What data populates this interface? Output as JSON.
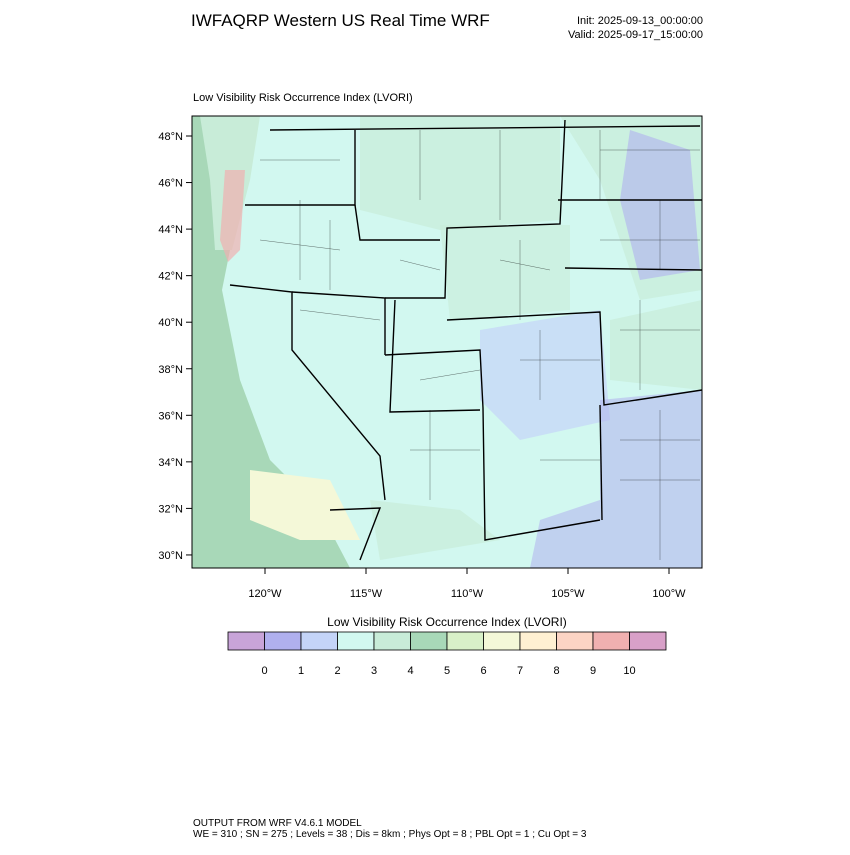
{
  "header": {
    "title": "IWFAQRP Western US Real Time WRF",
    "init": "Init: 2025-09-13_00:00:00",
    "valid": "Valid: 2025-09-17_15:00:00"
  },
  "map": {
    "subtitle": "Low Visibility Risk Occurrence Index   (LVORI)",
    "lat_ticks": [
      "48°N",
      "46°N",
      "44°N",
      "42°N",
      "40°N",
      "38°N",
      "36°N",
      "34°N",
      "32°N",
      "30°N"
    ],
    "lon_ticks": [
      "120°W",
      "115°W",
      "110°W",
      "105°W",
      "100°W"
    ]
  },
  "colorbar": {
    "title": "Low Visibility Risk Occurrence Index  (LVORI)",
    "levels": [
      0,
      1,
      2,
      3,
      4,
      5,
      6,
      7,
      8,
      9,
      10
    ],
    "colors": [
      "#c8a4d8",
      "#b0b0ee",
      "#c4d4f8",
      "#d2f8f0",
      "#c8ecd8",
      "#a8d8b8",
      "#d8f0c8",
      "#f4f8d8",
      "#fff0d2",
      "#fcd4c4",
      "#f0b0b0",
      "#d8a0c8"
    ]
  },
  "footer": {
    "line1": "OUTPUT FROM WRF V4.6.1 MODEL",
    "line2": "WE = 310 ; SN = 275 ; Levels = 38 ; Dis = 8km ; Phys Opt = 8 ; PBL Opt = 1 ; Cu Opt = 3"
  }
}
